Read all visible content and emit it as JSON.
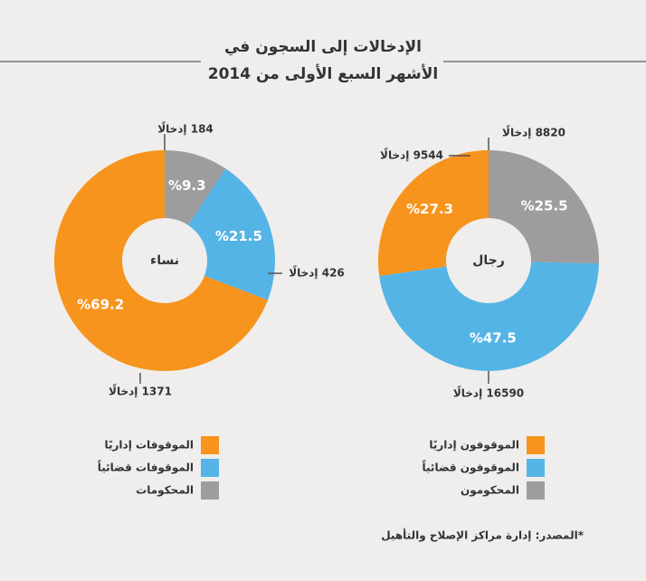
{
  "title": [
    "الإدخالات إلى السجون في",
    "الأشهر السبع الأولى من 2014"
  ],
  "source": "*المصدر: إدارة مراكز الإصلاح والتأهيل",
  "chart_data": [
    {
      "type": "pie",
      "center_label": "نساء",
      "categories": [
        "الموقوفات إداريًا",
        "الموقوفات قضائياً",
        "المحكومات"
      ],
      "values": [
        69.2,
        21.5,
        9.3
      ],
      "value_labels": [
        "%69.2",
        "%21.5",
        "%9.3"
      ],
      "colors": [
        "#f7941d",
        "#55b4e6",
        "#9d9d9d"
      ],
      "annotations": [
        "1371 إدخالًا",
        "426 إدخالًا",
        "184 إدخالًا"
      ]
    },
    {
      "type": "pie",
      "center_label": "رجال",
      "categories": [
        "الموقوفون إداريًا",
        "الموقوفون قضائياً",
        "المحكومون"
      ],
      "values": [
        27.3,
        47.5,
        25.5
      ],
      "value_labels": [
        "%27.3",
        "%47.5",
        "%25.5"
      ],
      "colors": [
        "#f7941d",
        "#55b4e6",
        "#9d9d9d"
      ],
      "annotations": [
        "9544 إدخالًا",
        "16590 إدخالًا",
        "8820 إدخالًا"
      ]
    }
  ]
}
